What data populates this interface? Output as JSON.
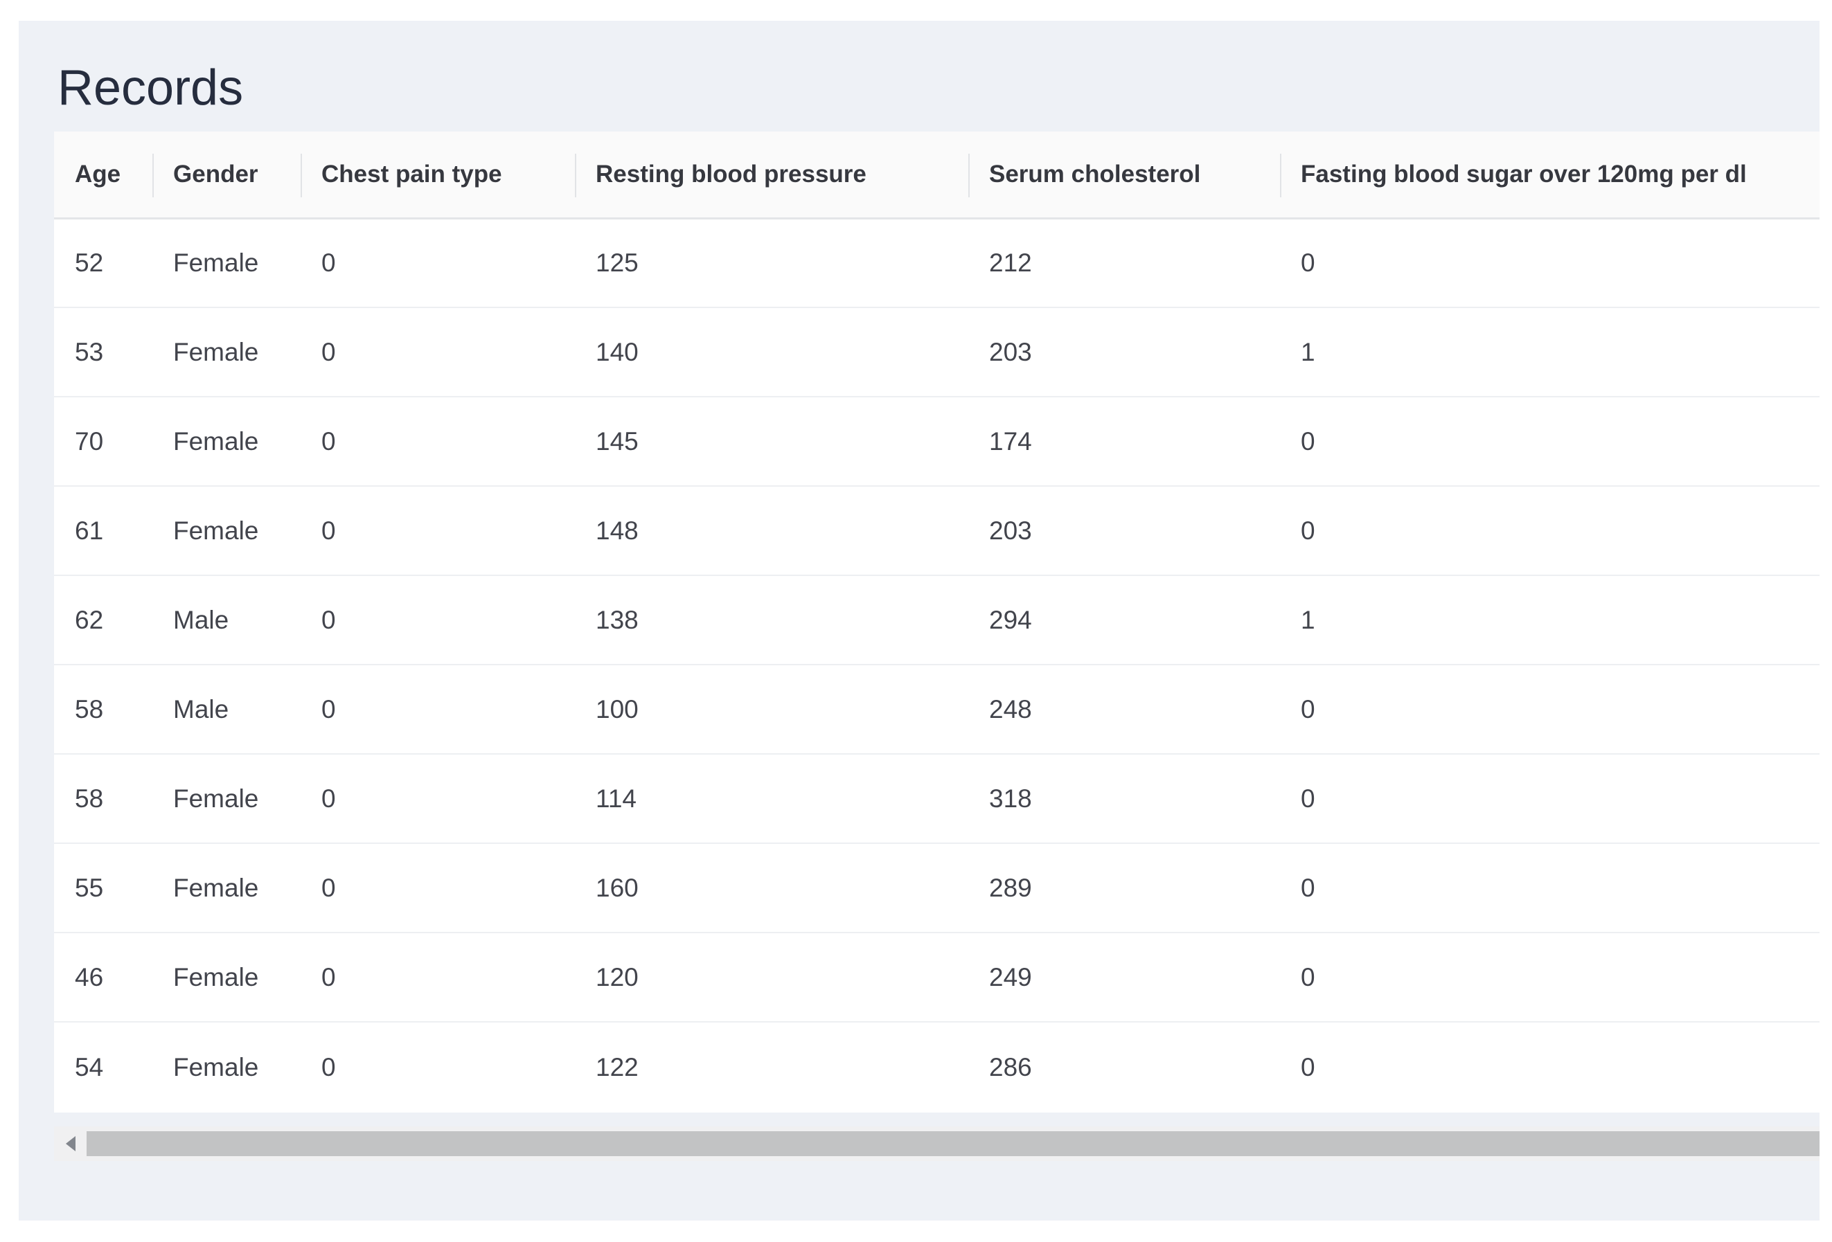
{
  "page": {
    "title": "Records"
  },
  "table": {
    "columns": [
      "Age",
      "Gender",
      "Chest pain type",
      "Resting blood pressure",
      "Serum cholesterol",
      "Fasting blood sugar over 120mg per dl"
    ],
    "rows": [
      [
        "52",
        "Female",
        "0",
        "125",
        "212",
        "0"
      ],
      [
        "53",
        "Female",
        "0",
        "140",
        "203",
        "1"
      ],
      [
        "70",
        "Female",
        "0",
        "145",
        "174",
        "0"
      ],
      [
        "61",
        "Female",
        "0",
        "148",
        "203",
        "0"
      ],
      [
        "62",
        "Male",
        "0",
        "138",
        "294",
        "1"
      ],
      [
        "58",
        "Male",
        "0",
        "100",
        "248",
        "0"
      ],
      [
        "58",
        "Female",
        "0",
        "114",
        "318",
        "0"
      ],
      [
        "55",
        "Female",
        "0",
        "160",
        "289",
        "0"
      ],
      [
        "46",
        "Female",
        "0",
        "120",
        "249",
        "0"
      ],
      [
        "54",
        "Female",
        "0",
        "122",
        "286",
        "0"
      ]
    ]
  },
  "scrollbar": {
    "left_arrow_icon": "left-triangle",
    "orientation": "horizontal"
  },
  "colors": {
    "page_bg": "#ffffff",
    "panel_bg": "#eef1f6",
    "header_bg": "#fafafa",
    "row_bg": "#ffffff",
    "row_divider": "#edeff2",
    "header_divider": "#e1e3e6",
    "header_bottom_border": "#e3e5e8",
    "title_text": "#262d3e",
    "header_text": "#36383f",
    "cell_text": "#42444c",
    "scrollbar_track": "#f0f0f1",
    "scrollbar_thumb": "#c2c3c4",
    "scrollbar_arrow": "#82868d"
  }
}
